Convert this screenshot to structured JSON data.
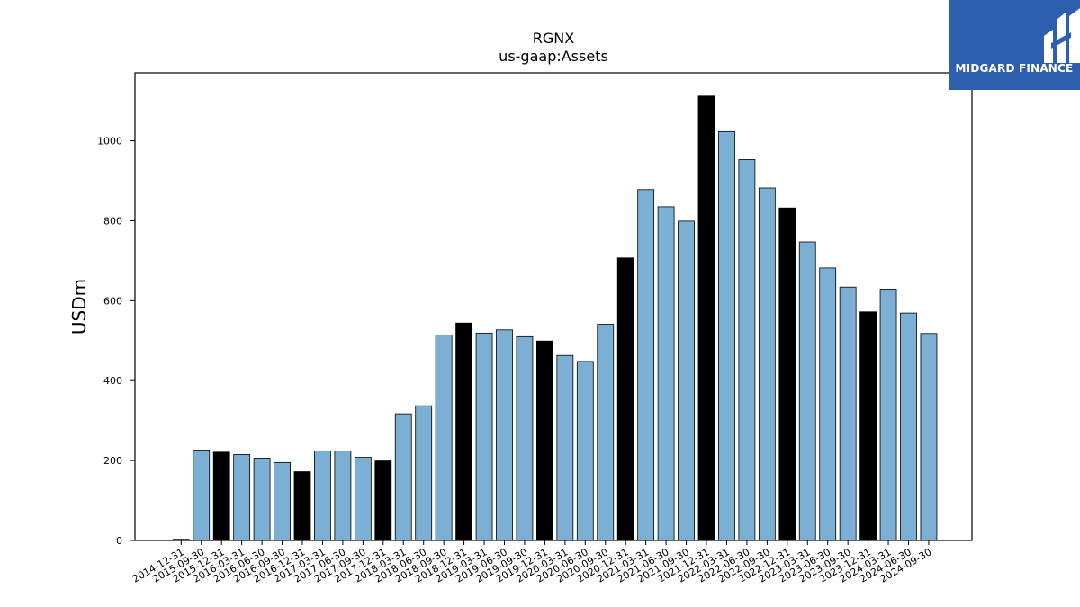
{
  "chart_data": {
    "type": "bar",
    "title": "RGNX",
    "subtitle": "us-gaap:Assets",
    "ylabel": "USDm",
    "xlabel": "",
    "ylim": [
      0,
      1170
    ],
    "yticks": [
      0,
      200,
      400,
      600,
      800,
      1000
    ],
    "grid": false,
    "colors": {
      "quarter": "#7bafd4",
      "year_end": "#000000",
      "edge": "#000000"
    },
    "categories": [
      "2014-12-31",
      "2015-09-30",
      "2015-12-31",
      "2016-03-31",
      "2016-06-30",
      "2016-09-30",
      "2016-12-31",
      "2017-03-31",
      "2017-06-30",
      "2017-09-30",
      "2017-12-31",
      "2018-03-31",
      "2018-06-30",
      "2018-09-30",
      "2018-12-31",
      "2019-03-31",
      "2019-06-30",
      "2019-09-30",
      "2019-12-31",
      "2020-03-31",
      "2020-06-30",
      "2020-09-30",
      "2020-12-31",
      "2021-03-31",
      "2021-06-30",
      "2021-09-30",
      "2021-12-31",
      "2022-03-31",
      "2022-06-30",
      "2022-09-30",
      "2022-12-31",
      "2023-03-31",
      "2023-06-30",
      "2023-09-30",
      "2023-12-31",
      "2024-03-31",
      "2024-06-30",
      "2024-09-30"
    ],
    "values": [
      3,
      226,
      221,
      215,
      206,
      195,
      172,
      224,
      224,
      208,
      199,
      317,
      337,
      514,
      544,
      519,
      527,
      510,
      499,
      463,
      448,
      541,
      707,
      878,
      835,
      799,
      1112,
      1023,
      953,
      882,
      832,
      747,
      682,
      634,
      572,
      629,
      569,
      518
    ],
    "year_end": [
      true,
      false,
      true,
      false,
      false,
      false,
      true,
      false,
      false,
      false,
      true,
      false,
      false,
      false,
      true,
      false,
      false,
      false,
      true,
      false,
      false,
      false,
      true,
      false,
      false,
      false,
      true,
      false,
      false,
      false,
      true,
      false,
      false,
      false,
      true,
      false,
      false,
      false
    ]
  },
  "logo": {
    "text": "MIDGARD FINANCE",
    "color": "#2d5fae"
  }
}
